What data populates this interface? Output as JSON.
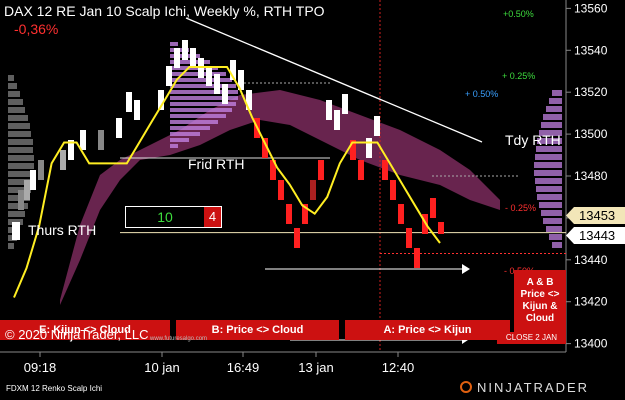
{
  "title": "DAX 12 RE Jan 10 Scalp Ichi, Weekly %, RTH TPO",
  "change_pct": "-0,36%",
  "copyright": "© 2020 NinjaTrader, LLC",
  "footer_left": "FDXM 12 Renko Scalp Ichi",
  "footer_logo": "NINJATRADER",
  "url_text": "www.futuresalgo.com",
  "colors": {
    "background": "#000000",
    "up": "#ffffff",
    "down": "#ff2020",
    "signal": "#ffee22",
    "cloud": "#7a2a5c",
    "profile": "#c080e0",
    "banner": "#cc1111"
  },
  "rth_labels": {
    "thurs": "Thurs RTH",
    "frid": "Frid RTH",
    "tdy": "Tdy RTH"
  },
  "counter_box": {
    "value": "10",
    "count": "4"
  },
  "weekly_pct": {
    "p050": "+0.50%",
    "p025": "+ 0.25%",
    "p050b": "+ 0.50%",
    "m025": "- 0.25%",
    "m050": "- 0.50%"
  },
  "banners": {
    "left": "E: Kijun <> Cloud",
    "mid": "B: Price <> Cloud",
    "right": "A: Price <> Kijun",
    "side": "A & B Price <> Kijun & Cloud",
    "close": "CLOSE 2 JAN"
  },
  "price_markers": {
    "current": "13453",
    "second": "13443"
  },
  "chart_data": {
    "type": "line",
    "x_tick_labels": [
      "09:18",
      "10 jan",
      "16:49",
      "13 jan",
      "12:40"
    ],
    "y_ticks": [
      13400,
      13420,
      13440,
      13460,
      13480,
      13500,
      13520,
      13540,
      13560
    ],
    "ylim": [
      13396,
      13564
    ],
    "grid": false,
    "series": [
      {
        "values": [
          13422,
          13436,
          13456,
          13486,
          13496,
          13496,
          13486,
          13486,
          13486,
          13486,
          13496,
          13506,
          13516,
          13526,
          13532,
          13532,
          13532,
          13532,
          13522,
          13508,
          13496,
          13484,
          13476,
          13466,
          13462,
          13470,
          13486,
          13496,
          13496,
          13496,
          13486,
          13476,
          13466,
          13456,
          13448
        ]
      }
    ]
  }
}
